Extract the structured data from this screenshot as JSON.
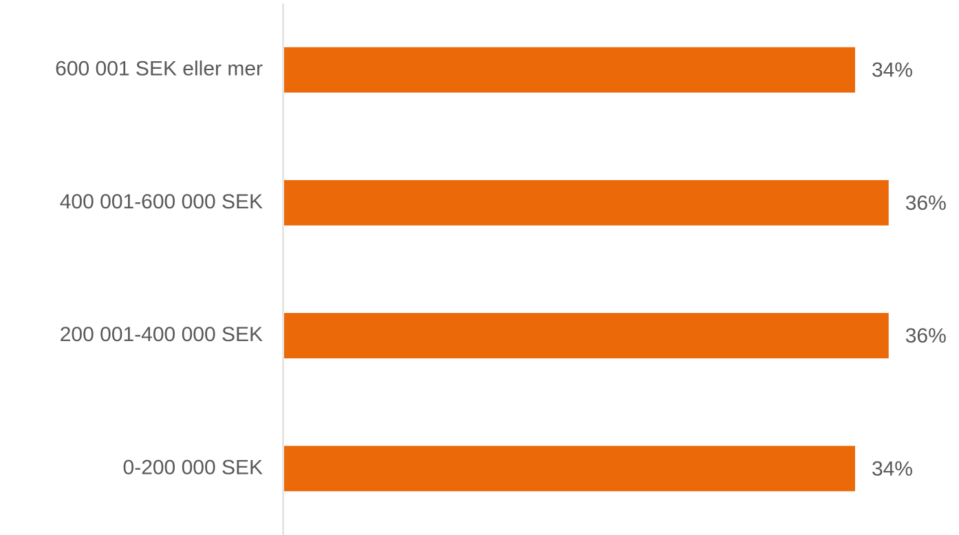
{
  "chart_data": {
    "type": "bar",
    "orientation": "horizontal",
    "categories": [
      "600 001 SEK eller mer",
      "400 001-600 000 SEK",
      "200 001-400 000 SEK",
      "0-200 000 SEK"
    ],
    "values": [
      34,
      36,
      36,
      34
    ],
    "value_labels": [
      "34%",
      "36%",
      "36%",
      "34%"
    ],
    "color": "#eb6909"
  }
}
